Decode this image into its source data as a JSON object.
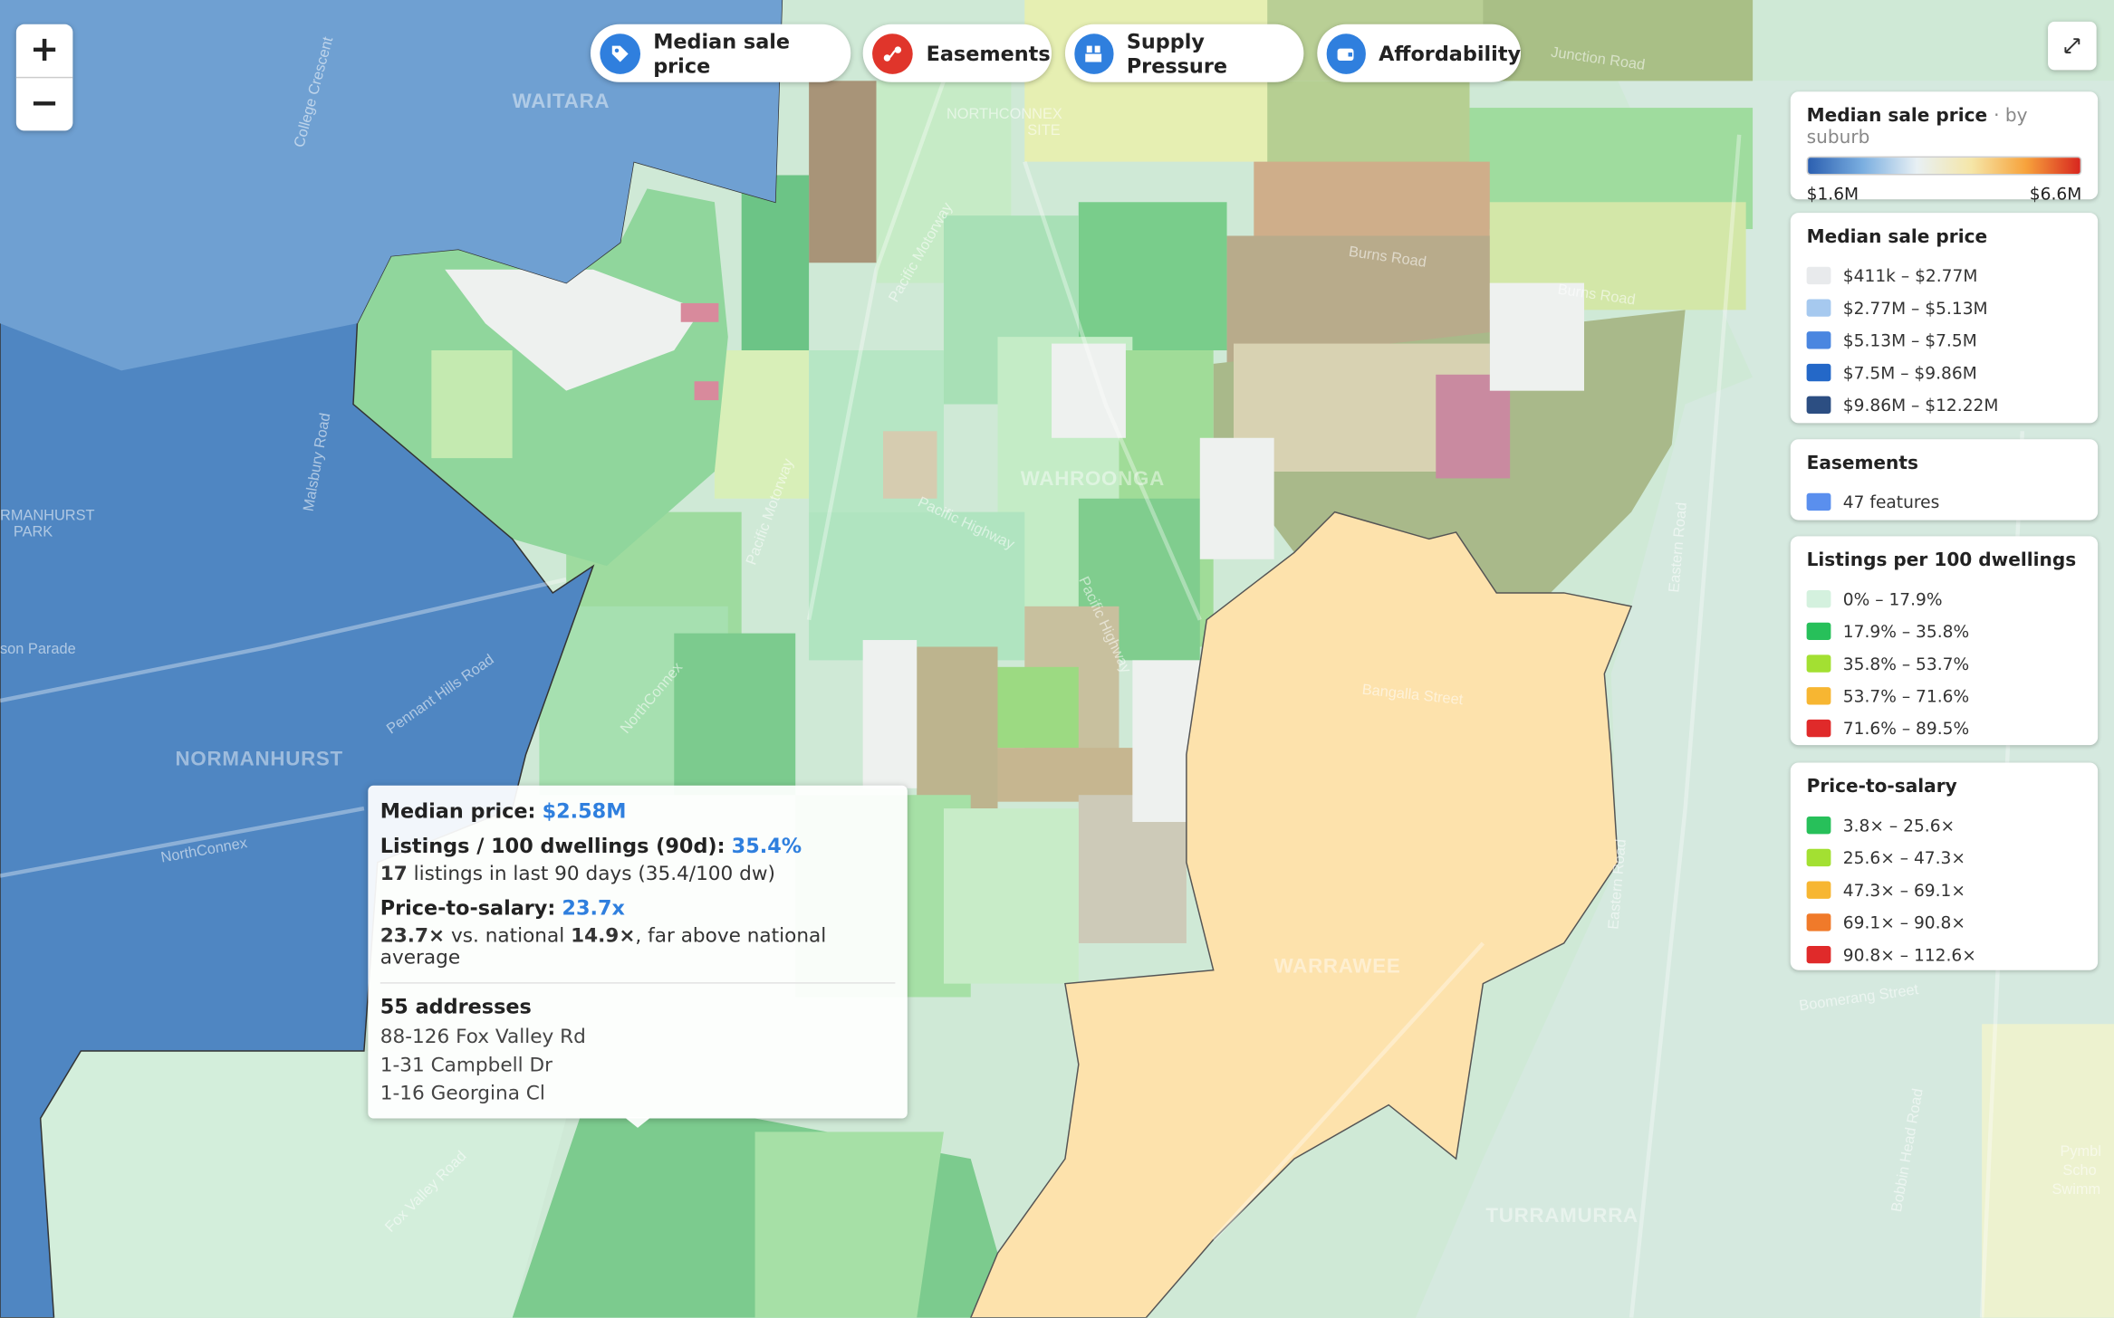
{
  "zoom": {
    "zoom_in": "+",
    "zoom_out": "−"
  },
  "layers": [
    "Median sale price",
    "Easements",
    "Supply Pressure",
    "Affordability"
  ],
  "map_labels": [
    "WAITARA",
    "NORMANHURST",
    "WAHROONGA",
    "WARRAWEE",
    "TURRAMURRA",
    "RMANHURST",
    "PARK",
    "NORTHCONNEX",
    "SITE",
    "Junction Road",
    "Burns Road",
    "Burns Road",
    "Pacific Highway",
    "Pacific Highway",
    "Pacific Motorway",
    "Pacific Motorway",
    "Pennant Hills Road",
    "NorthConnex",
    "NorthConnex",
    "Fox Valley Road",
    "Bangalla Street",
    "Boomerang Street",
    "Eastern Road",
    "Eastern Road",
    "Bobbin Head Road",
    "son Parade",
    "Malsbury Road",
    "College Crescent",
    "Pymbl",
    "Scho",
    "Swimm"
  ],
  "legend": {
    "title": "Median sale price",
    "subtitle": "· by suburb",
    "min": "$1.6M",
    "max": "$6.6M"
  },
  "panels": [
    {
      "title": "Median sale price",
      "items": [
        "$411k – $2.77M",
        "$2.77M – $5.13M",
        "$5.13M – $7.5M",
        "$7.5M – $9.86M",
        "$9.86M – $12.22M"
      ]
    },
    {
      "title": "Easements",
      "items": [
        "47 features"
      ]
    },
    {
      "title": "Listings per 100 dwellings",
      "items": [
        "0% – 17.9%",
        "17.9% – 35.8%",
        "35.8% – 53.7%",
        "53.7% – 71.6%",
        "71.6% – 89.5%"
      ]
    },
    {
      "title": "Price-to-salary",
      "items": [
        "3.8× – 25.6×",
        "25.6× – 47.3×",
        "47.3× – 69.1×",
        "69.1× – 90.8×",
        "90.8× – 112.6×"
      ]
    }
  ],
  "tooltip": {
    "median_label": "Median price:",
    "median_value": "$2.58M",
    "listings_label": "Listings / 100 dwellings (90d):",
    "listings_value": "35.4%",
    "listings_count": "17",
    "listings_note": "listings in last 90 days (35.4/100 dw)",
    "pts_label": "Price-to-salary:",
    "pts_value": "23.7x",
    "pts_ratio": "23.7×",
    "pts_mid": "vs. national",
    "pts_national": "14.9×",
    "pts_note": ", far above national average",
    "addresses_title": "55 addresses",
    "addresses": [
      "88-126 Fox Valley Rd",
      "1-31 Campbell Dr",
      "1-16 Georgina Cl"
    ]
  }
}
